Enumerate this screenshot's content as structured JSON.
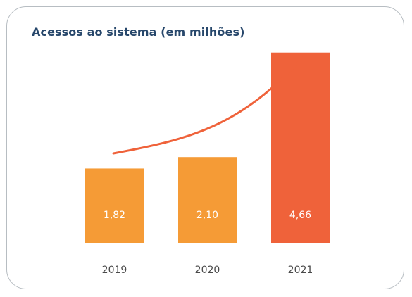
{
  "chart_data": {
    "type": "bar",
    "title": "Acessos ao sistema (em milhões)",
    "categories": [
      "2019",
      "2020",
      "2021"
    ],
    "values": [
      1.82,
      2.1,
      4.66
    ],
    "value_labels": [
      "1,82",
      "2,10",
      "4,66"
    ],
    "colors": [
      "#f59b36",
      "#f59b36",
      "#ef623a"
    ],
    "arrow_color": "#ef623a",
    "trend": "rising",
    "ylim": [
      0,
      5
    ],
    "grid": false,
    "legend": "none",
    "xlabel": "",
    "ylabel": ""
  }
}
